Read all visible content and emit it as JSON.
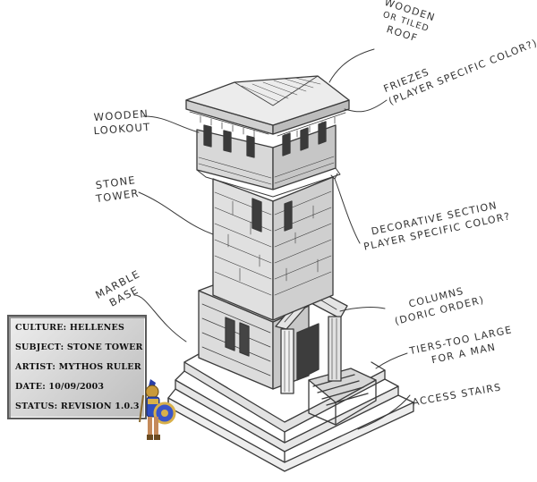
{
  "annotations": {
    "wooden_lookout": [
      "Wooden",
      "Lookout"
    ],
    "stone_tower": [
      "Stone",
      "Tower"
    ],
    "marble_base": [
      "Marble",
      "Base"
    ],
    "roof": [
      "Wooden",
      "or tiled",
      "Roof"
    ],
    "friezes": [
      "Friezes",
      "(Player Specific Color?)"
    ],
    "decorative_section": [
      "Decorative Section",
      "Player Specific Color?"
    ],
    "columns": [
      "Columns",
      "(Doric Order)"
    ],
    "tiers": [
      "Tiers-Too Large",
      "For A Man"
    ],
    "access_stairs": [
      "Access Stairs"
    ]
  },
  "info_panel": {
    "culture": "CULTURE: HELLENES",
    "subject": "SUBJECT: STONE TOWER",
    "artist": "ARTIST: MYTHOS RULER",
    "date": "DATE: 10/09/2003",
    "status": "STATUS: REVISION 1.0.3"
  }
}
